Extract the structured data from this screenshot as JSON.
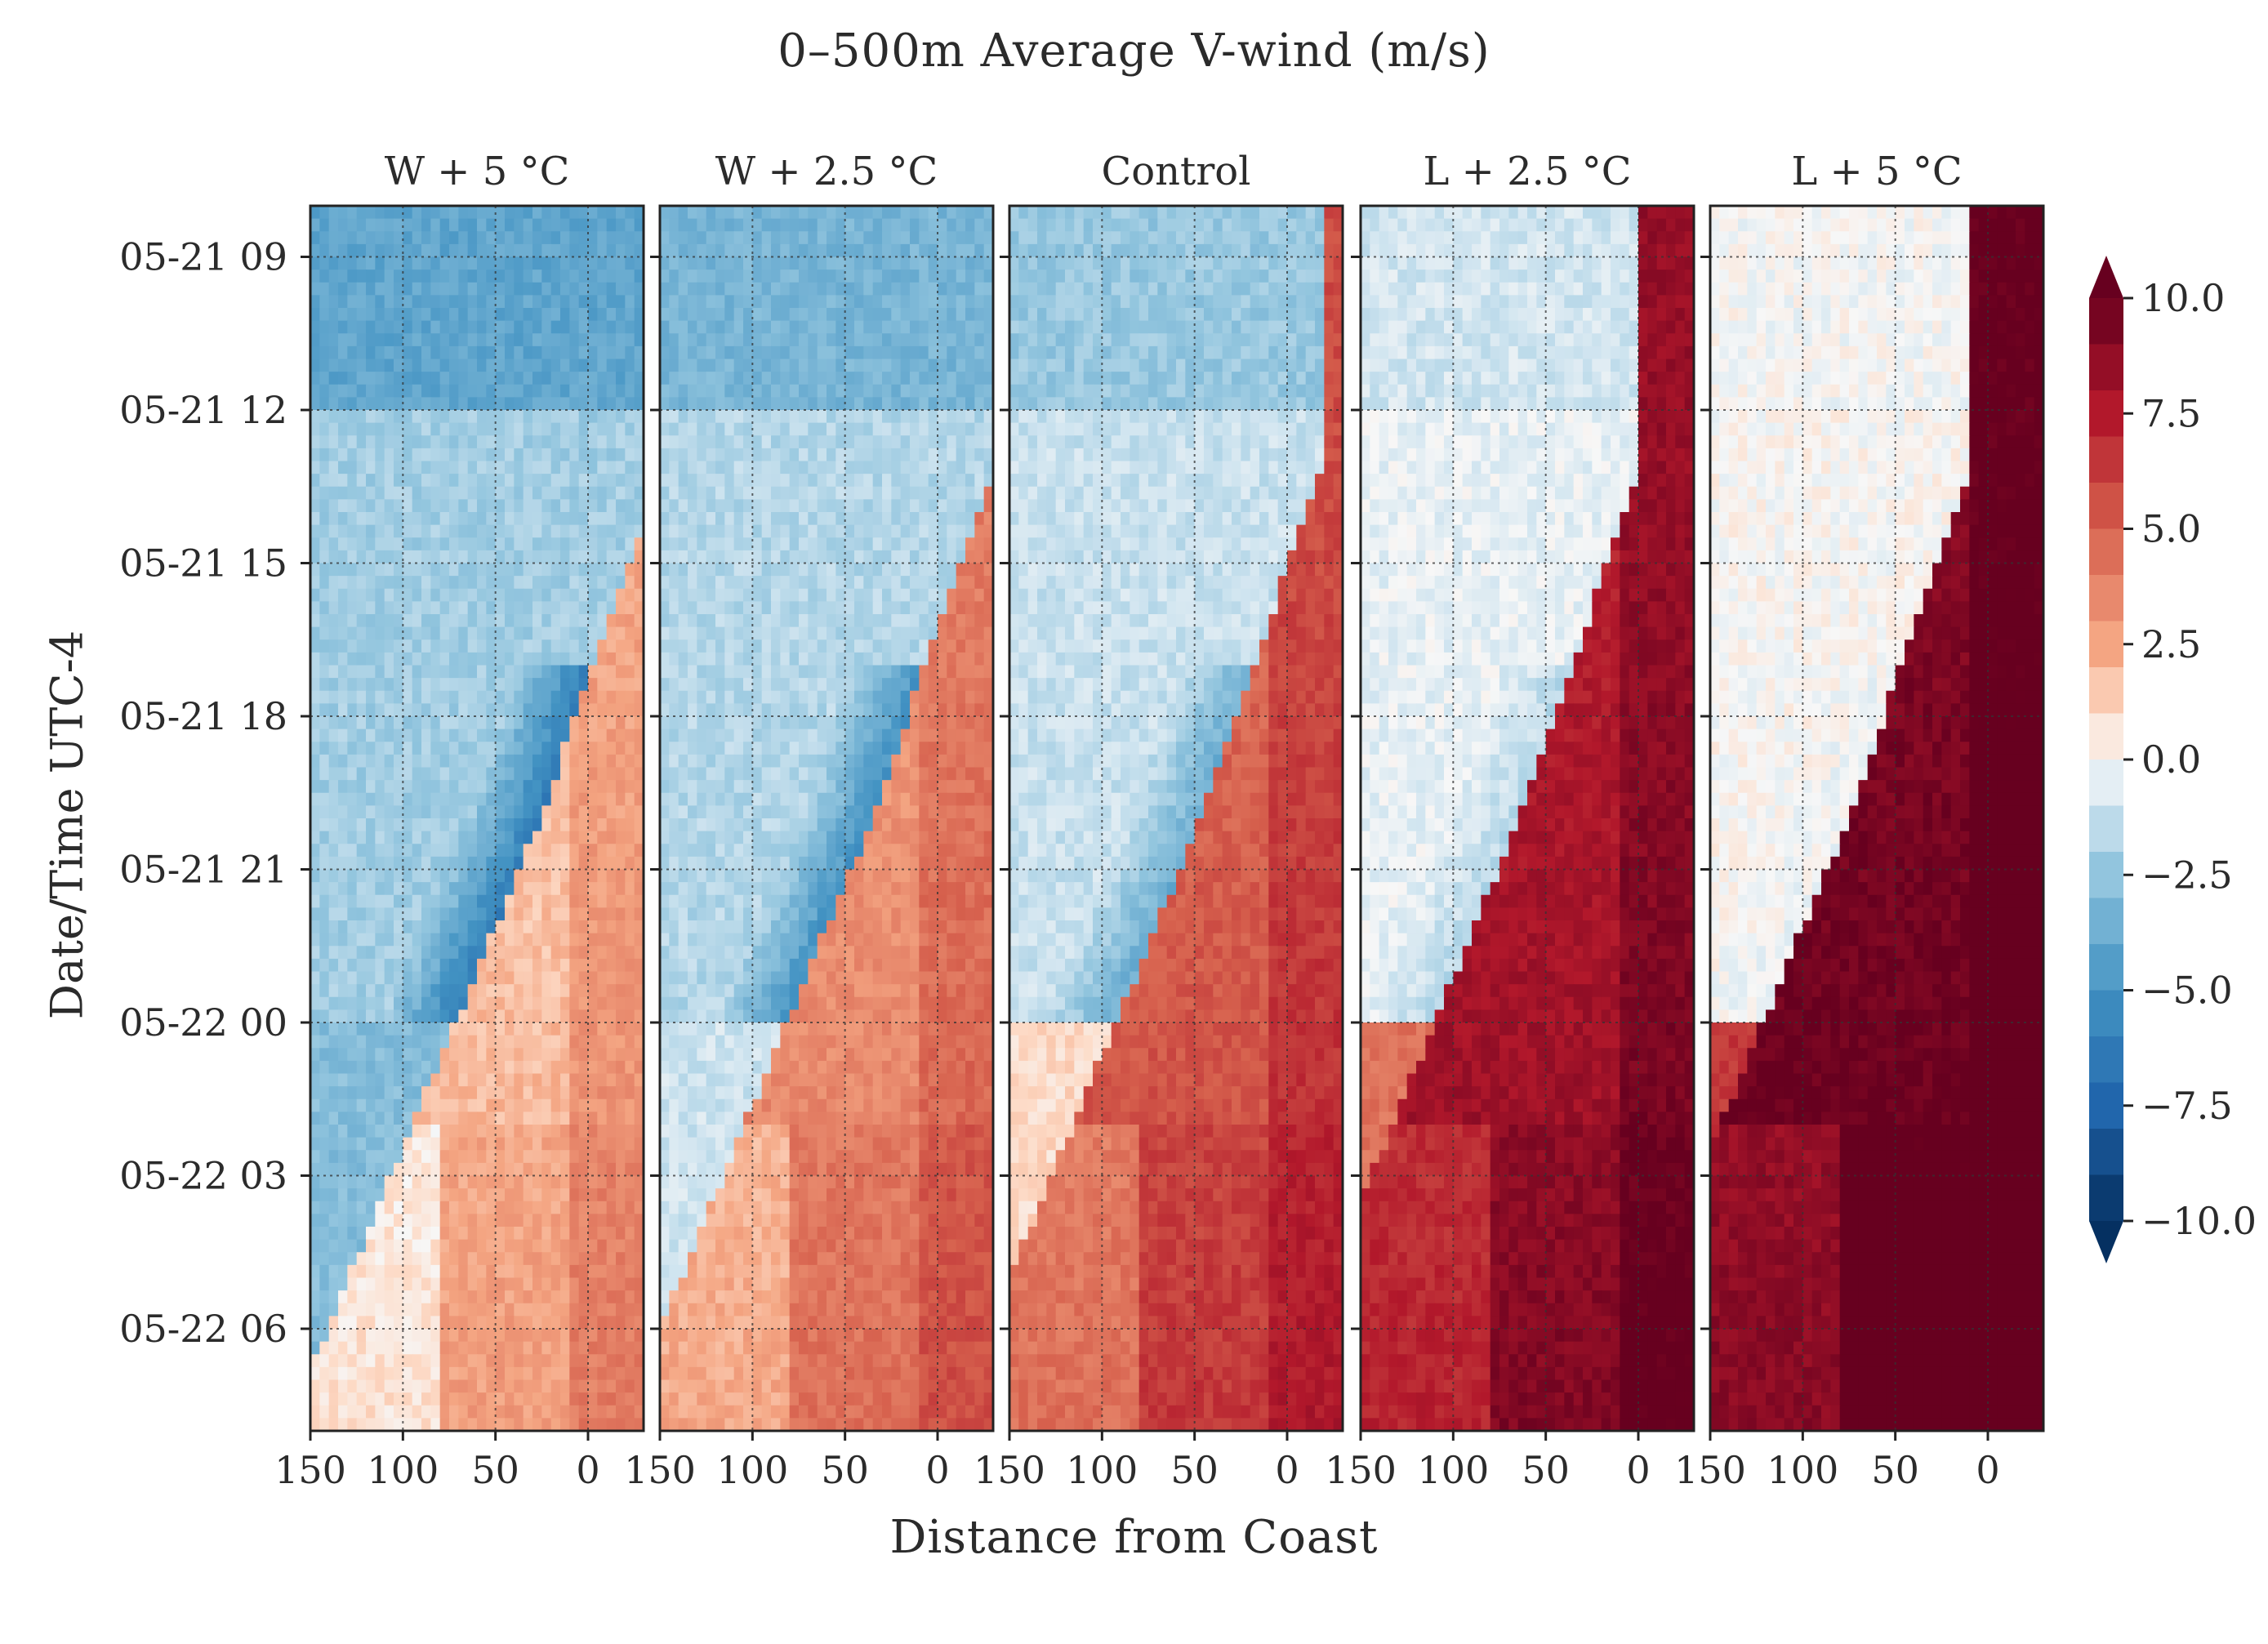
{
  "figure_title": "0–500m Average V-wind (m/s)",
  "x_label": "Distance from Coast",
  "y_label": "Date/Time UTC-4",
  "chart_data": {
    "type": "heatmap",
    "title": "0–500m Average V-wind (m/s)",
    "xlabel": "Distance from Coast",
    "ylabel": "Date/Time UTC-4",
    "colormap": "RdBu_r",
    "panels": [
      {
        "title": "W + 5 °C",
        "shift": -2.6,
        "front_strength": 0.75
      },
      {
        "title": "W + 2.5 °C",
        "shift": -1.4,
        "front_strength": 0.85
      },
      {
        "title": "Control",
        "shift": 0.0,
        "front_strength": 1.0
      },
      {
        "title": "L + 2.5 °C",
        "shift": 2.2,
        "front_strength": 1.0
      },
      {
        "title": "L + 5 °C",
        "shift": 3.6,
        "front_strength": 1.0
      }
    ],
    "x_ticks": [
      150,
      100,
      50,
      0
    ],
    "x_tick_labels": [
      "150",
      "100",
      "50",
      "0"
    ],
    "xlim": [
      150,
      -30
    ],
    "y_ticks_hours": [
      9,
      12,
      15,
      18,
      21,
      24,
      27,
      30
    ],
    "y_tick_labels": [
      "05-21 09",
      "05-21 12",
      "05-21 15",
      "05-21 18",
      "05-21 21",
      "05-22 00",
      "05-22 03",
      "05-22 06"
    ],
    "ylim_hours": [
      8,
      32
    ],
    "colorbar": {
      "min": -10.0,
      "max": 10.0,
      "ticks": [
        10.0,
        7.5,
        5.0,
        2.5,
        0.0,
        -2.5,
        -5.0,
        -7.5,
        -10.0
      ],
      "tick_labels": [
        "10.0",
        "7.5",
        "5.0",
        "2.5",
        "0.0",
        "−2.5",
        "−5.0",
        "−7.5",
        "−10.0"
      ],
      "extend": "both"
    },
    "grid": true
  },
  "colors": {
    "low": "#053061",
    "mid": "#f7f7f7",
    "high": "#67001f"
  }
}
